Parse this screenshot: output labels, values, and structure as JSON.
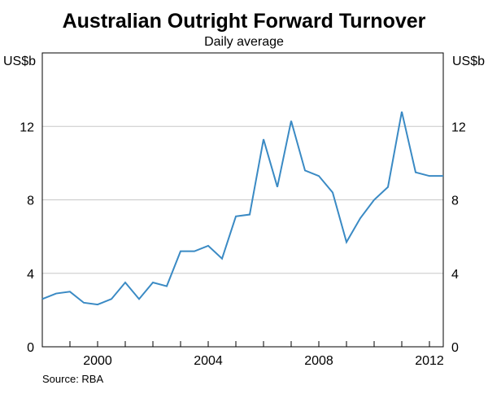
{
  "chart_data": {
    "type": "line",
    "title": "Australian Outright Forward Turnover",
    "subtitle": "Daily average",
    "ylabel_left": "US$b",
    "ylabel_right": "US$b",
    "source": "Source: RBA",
    "ylim": [
      0,
      16
    ],
    "yticks": [
      0,
      4,
      8,
      12
    ],
    "xlim": [
      1998.0,
      2012.5
    ],
    "xticks": [
      2000,
      2004,
      2008,
      2012
    ],
    "grid": true,
    "series": [
      {
        "color": "#3a8ac4",
        "x": [
          1998.0,
          1998.5,
          1999.0,
          1999.5,
          2000.0,
          2000.5,
          2001.0,
          2001.5,
          2002.0,
          2002.5,
          2003.0,
          2003.5,
          2004.0,
          2004.5,
          2005.0,
          2005.5,
          2006.0,
          2006.5,
          2007.0,
          2007.5,
          2008.0,
          2008.5,
          2009.0,
          2009.5,
          2010.0,
          2010.5,
          2011.0,
          2011.5,
          2012.0,
          2012.5
        ],
        "y": [
          2.6,
          2.9,
          3.0,
          2.4,
          2.3,
          2.6,
          3.5,
          2.6,
          3.5,
          3.3,
          5.2,
          5.2,
          5.5,
          4.8,
          7.1,
          7.2,
          11.3,
          8.7,
          12.3,
          9.6,
          9.3,
          8.4,
          5.7,
          7.0,
          8.0,
          8.7,
          12.8,
          9.5,
          9.3,
          9.3
        ]
      }
    ]
  }
}
